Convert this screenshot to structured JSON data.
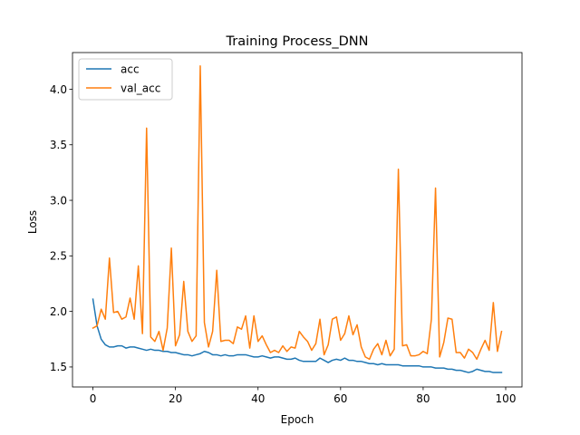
{
  "chart_data": {
    "type": "line",
    "title": "Training Process_DNN",
    "xlabel": "Epoch",
    "ylabel": "Loss",
    "xlim": [
      -4.95,
      103.95
    ],
    "ylim": [
      1.32,
      4.33
    ],
    "xticks": [
      0,
      20,
      40,
      60,
      80,
      100
    ],
    "yticks": [
      1.5,
      2.0,
      2.5,
      3.0,
      3.5,
      4.0
    ],
    "xtick_labels": [
      "0",
      "20",
      "40",
      "60",
      "80",
      "100"
    ],
    "ytick_labels": [
      "1.5",
      "2.0",
      "2.5",
      "3.0",
      "3.5",
      "4.0"
    ],
    "grid": false,
    "legend_position": "upper-left",
    "series": [
      {
        "name": "acc",
        "color": "#1f77b4",
        "values": [
          2.11,
          1.87,
          1.75,
          1.7,
          1.68,
          1.68,
          1.69,
          1.69,
          1.67,
          1.68,
          1.68,
          1.67,
          1.66,
          1.65,
          1.66,
          1.65,
          1.65,
          1.64,
          1.64,
          1.63,
          1.63,
          1.62,
          1.61,
          1.61,
          1.6,
          1.61,
          1.62,
          1.64,
          1.63,
          1.61,
          1.61,
          1.6,
          1.61,
          1.6,
          1.6,
          1.61,
          1.61,
          1.61,
          1.6,
          1.59,
          1.59,
          1.6,
          1.59,
          1.58,
          1.59,
          1.59,
          1.58,
          1.57,
          1.57,
          1.58,
          1.56,
          1.55,
          1.55,
          1.55,
          1.55,
          1.58,
          1.56,
          1.54,
          1.56,
          1.57,
          1.56,
          1.58,
          1.56,
          1.56,
          1.55,
          1.55,
          1.54,
          1.53,
          1.53,
          1.52,
          1.53,
          1.52,
          1.52,
          1.52,
          1.52,
          1.51,
          1.51,
          1.51,
          1.51,
          1.51,
          1.5,
          1.5,
          1.5,
          1.49,
          1.49,
          1.49,
          1.48,
          1.48,
          1.47,
          1.47,
          1.46,
          1.45,
          1.46,
          1.48,
          1.47,
          1.46,
          1.46,
          1.45,
          1.45,
          1.45
        ]
      },
      {
        "name": "val_acc",
        "color": "#ff7f0e",
        "values": [
          1.85,
          1.87,
          2.02,
          1.93,
          2.48,
          1.99,
          2.0,
          1.93,
          1.95,
          2.12,
          1.93,
          2.41,
          1.8,
          3.65,
          1.77,
          1.73,
          1.82,
          1.65,
          1.85,
          2.57,
          1.69,
          1.79,
          2.27,
          1.82,
          1.73,
          1.78,
          4.21,
          1.9,
          1.68,
          1.82,
          2.37,
          1.73,
          1.74,
          1.74,
          1.71,
          1.86,
          1.84,
          1.96,
          1.67,
          1.96,
          1.73,
          1.78,
          1.7,
          1.63,
          1.65,
          1.63,
          1.69,
          1.64,
          1.68,
          1.67,
          1.82,
          1.77,
          1.73,
          1.65,
          1.71,
          1.93,
          1.61,
          1.7,
          1.93,
          1.95,
          1.74,
          1.8,
          1.96,
          1.79,
          1.88,
          1.68,
          1.59,
          1.57,
          1.66,
          1.71,
          1.61,
          1.74,
          1.6,
          1.66,
          3.28,
          1.69,
          1.7,
          1.6,
          1.6,
          1.61,
          1.64,
          1.62,
          1.93,
          3.11,
          1.59,
          1.72,
          1.94,
          1.93,
          1.63,
          1.63,
          1.58,
          1.66,
          1.63,
          1.57,
          1.66,
          1.74,
          1.65,
          2.08,
          1.64,
          1.82
        ]
      }
    ]
  }
}
